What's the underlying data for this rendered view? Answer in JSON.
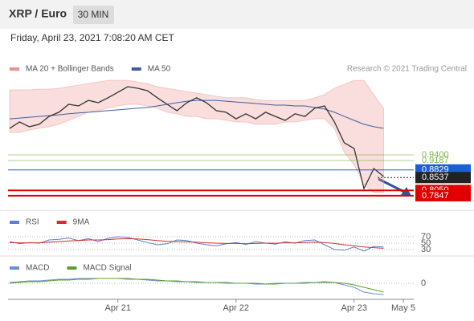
{
  "chart_data": [
    {
      "type": "line",
      "title": "XRP / Euro",
      "interval": "30 MIN",
      "subtitle": "Friday, April 23, 2021 7:08:20 AM CET",
      "source": "Research © 2021 Trading Central",
      "values": [
        1.041,
        1.065,
        1.047,
        1.056,
        1.086,
        1.102,
        1.132,
        1.126,
        1.147,
        1.138,
        1.157,
        1.178,
        1.199,
        1.193,
        1.184,
        1.157,
        1.132,
        1.108,
        1.138,
        1.157,
        1.138,
        1.108,
        1.102,
        1.077,
        1.096,
        1.077,
        1.102,
        1.086,
        1.071,
        1.096,
        1.086,
        1.117,
        1.126,
        1.065,
        0.986,
        0.964,
        0.812,
        0.888,
        0.858,
        null,
        null
      ],
      "color": "#333333",
      "series": [
        {
          "name": "MA 20 + Bollinger Bands",
          "color": "#f08f8f",
          "upper": [
            1.187,
            1.187,
            1.187,
            1.19,
            1.19,
            1.193,
            1.199,
            1.205,
            1.211,
            1.217,
            1.223,
            1.223,
            1.223,
            1.217,
            1.211,
            1.199,
            1.193,
            1.187,
            1.181,
            1.175,
            1.169,
            1.163,
            1.157,
            1.157,
            1.157,
            1.15,
            1.147,
            1.147,
            1.147,
            1.147,
            1.147,
            1.157,
            1.169,
            1.193,
            1.208,
            1.223,
            1.223,
            1.169,
            1.117,
            null,
            null
          ],
          "lower": [
            1.025,
            1.025,
            1.034,
            1.041,
            1.047,
            1.056,
            1.071,
            1.086,
            1.102,
            1.108,
            1.117,
            1.126,
            1.132,
            1.132,
            1.126,
            1.117,
            1.102,
            1.096,
            1.086,
            1.086,
            1.077,
            1.077,
            1.071,
            1.065,
            1.065,
            1.056,
            1.056,
            1.056,
            1.065,
            1.065,
            1.071,
            1.077,
            1.077,
            1.041,
            0.949,
            0.903,
            0.827,
            0.797,
            0.797,
            null,
            null
          ]
        },
        {
          "name": "MA 50",
          "color": "#3d5f9e",
          "values": [
            1.077,
            1.08,
            1.083,
            1.086,
            1.089,
            1.092,
            1.096,
            1.099,
            1.102,
            1.105,
            1.108,
            1.111,
            1.114,
            1.117,
            1.12,
            1.126,
            1.132,
            1.138,
            1.144,
            1.147,
            1.147,
            1.147,
            1.144,
            1.141,
            1.138,
            1.135,
            1.132,
            1.129,
            1.129,
            1.126,
            1.126,
            1.12,
            1.114,
            1.102,
            1.086,
            1.071,
            1.056,
            1.047,
            1.041,
            null,
            null
          ]
        }
      ],
      "ylim": [
        0.7296,
        1.2235
      ],
      "levels": [
        {
          "value": 0.94,
          "label": "0.9400",
          "color": "#7cb342",
          "boxed": false
        },
        {
          "value": 0.9187,
          "label": "0.9187",
          "color": "#7cb342",
          "boxed": false
        },
        {
          "value": 0.8829,
          "label": "0.8829",
          "color": "#1a5fd8",
          "boxed": true
        },
        {
          "value": 0.8537,
          "label": "0.8537",
          "color": "#222222",
          "boxed": true,
          "dotted": true
        },
        {
          "value": 0.805,
          "label": "0.8050",
          "color": "#e00000",
          "boxed": true
        },
        {
          "value": 0.7847,
          "label": "0.7847",
          "color": "#e00000",
          "boxed": true
        }
      ]
    },
    {
      "type": "line",
      "series": [
        {
          "name": "RSI",
          "color": "#5b7fd1",
          "values": [
            55,
            48,
            52,
            50,
            60,
            62,
            66,
            58,
            64,
            55,
            65,
            70,
            68,
            60,
            52,
            45,
            48,
            60,
            58,
            50,
            45,
            42,
            48,
            52,
            46,
            55,
            50,
            47,
            54,
            50,
            58,
            60,
            45,
            30,
            28,
            38,
            25,
            40,
            38,
            null,
            null
          ]
        },
        {
          "name": "9MA",
          "color": "#d32f2f",
          "values": [
            52,
            51,
            51,
            51,
            53,
            55,
            57,
            58,
            60,
            60,
            61,
            63,
            64,
            63,
            61,
            58,
            56,
            55,
            54,
            53,
            51,
            50,
            49,
            49,
            48,
            49,
            50,
            50,
            51,
            51,
            52,
            53,
            52,
            49,
            45,
            42,
            38,
            36,
            34,
            null,
            null
          ]
        }
      ],
      "ylim": [
        17.5,
        87.5
      ],
      "yticks": [
        30,
        50,
        70
      ]
    },
    {
      "type": "line",
      "categories": [
        null,
        null,
        null,
        null,
        null,
        null,
        null,
        null,
        null,
        null,
        null,
        "Apr 21",
        null,
        null,
        null,
        null,
        null,
        null,
        null,
        null,
        null,
        null,
        null,
        "Apr 22",
        null,
        null,
        null,
        null,
        null,
        null,
        null,
        null,
        null,
        null,
        null,
        "Apr 23",
        null,
        null,
        null,
        null,
        "May 5"
      ],
      "series": [
        {
          "name": "MACD",
          "color": "#6a8fd8",
          "values": [
            0.002,
            0.004,
            0.006,
            0.006,
            0.008,
            0.01,
            0.01,
            0.012,
            0.012,
            0.012,
            0.012,
            0.012,
            0.01,
            0.01,
            0.008,
            0.006,
            0.006,
            0.004,
            0.004,
            0.002,
            0.002,
            0.002,
            0,
            0,
            0,
            -0.002,
            -0.002,
            0,
            0,
            0,
            0.002,
            0.002,
            0.004,
            0.002,
            -0.004,
            -0.01,
            -0.022,
            -0.026,
            -0.028,
            null,
            null
          ]
        },
        {
          "name": "MACD Signal",
          "color": "#5aa02c",
          "values": [
            0,
            0.002,
            0.004,
            0.004,
            0.006,
            0.008,
            0.008,
            0.01,
            0.01,
            0.012,
            0.012,
            0.012,
            0.012,
            0.01,
            0.01,
            0.008,
            0.006,
            0.006,
            0.004,
            0.004,
            0.002,
            0.002,
            0.002,
            0,
            0,
            0,
            -0.002,
            -0.002,
            0,
            0,
            0,
            0.002,
            0.002,
            0.002,
            0,
            -0.004,
            -0.01,
            -0.016,
            -0.022,
            null,
            null
          ]
        }
      ],
      "ylim": [
        -0.038,
        0.062
      ],
      "yticks": [
        0
      ]
    }
  ]
}
